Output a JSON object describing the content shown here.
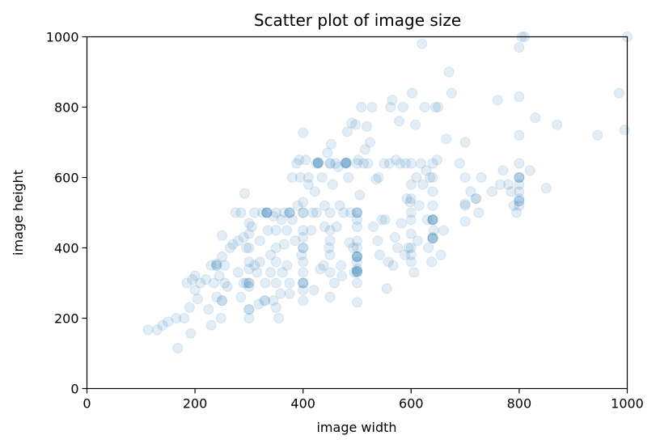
{
  "chart_data": {
    "type": "scatter",
    "title": "Scatter plot of image size",
    "xlabel": "image width",
    "ylabel": "image height",
    "xlim": [
      0,
      1000
    ],
    "ylim": [
      0,
      1000
    ],
    "xticks": [
      0,
      200,
      400,
      600,
      800,
      1000
    ],
    "yticks": [
      0,
      200,
      400,
      600,
      800,
      1000
    ],
    "grid": false,
    "point_color": "#1f77b4",
    "point_alpha": 0.13,
    "points": [
      [
        113,
        167
      ],
      [
        130,
        167
      ],
      [
        140,
        180
      ],
      [
        150,
        190
      ],
      [
        165,
        200
      ],
      [
        168,
        115
      ],
      [
        180,
        200
      ],
      [
        185,
        300
      ],
      [
        190,
        230
      ],
      [
        192,
        157
      ],
      [
        195,
        310
      ],
      [
        200,
        280
      ],
      [
        200,
        320
      ],
      [
        205,
        255
      ],
      [
        210,
        300
      ],
      [
        220,
        310
      ],
      [
        225,
        225
      ],
      [
        230,
        180
      ],
      [
        230,
        350
      ],
      [
        235,
        300
      ],
      [
        240,
        260
      ],
      [
        240,
        355
      ],
      [
        245,
        320
      ],
      [
        248,
        200
      ],
      [
        250,
        250
      ],
      [
        250,
        375
      ],
      [
        250,
        435
      ],
      [
        255,
        300
      ],
      [
        255,
        350
      ],
      [
        260,
        290
      ],
      [
        265,
        400
      ],
      [
        270,
        410
      ],
      [
        275,
        500
      ],
      [
        280,
        420
      ],
      [
        280,
        330
      ],
      [
        285,
        260
      ],
      [
        285,
        500
      ],
      [
        290,
        300
      ],
      [
        290,
        430
      ],
      [
        292,
        555
      ],
      [
        295,
        400
      ],
      [
        295,
        300
      ],
      [
        300,
        200
      ],
      [
        300,
        225
      ],
      [
        300,
        290
      ],
      [
        300,
        300
      ],
      [
        300,
        340
      ],
      [
        300,
        360
      ],
      [
        300,
        400
      ],
      [
        300,
        440
      ],
      [
        300,
        470
      ],
      [
        305,
        460
      ],
      [
        310,
        350
      ],
      [
        310,
        500
      ],
      [
        315,
        330
      ],
      [
        318,
        240
      ],
      [
        320,
        420
      ],
      [
        320,
        360
      ],
      [
        325,
        500
      ],
      [
        328,
        250
      ],
      [
        330,
        300
      ],
      [
        333,
        500
      ],
      [
        335,
        450
      ],
      [
        340,
        380
      ],
      [
        340,
        330
      ],
      [
        345,
        250
      ],
      [
        345,
        490
      ],
      [
        350,
        230
      ],
      [
        350,
        300
      ],
      [
        350,
        360
      ],
      [
        350,
        400
      ],
      [
        350,
        450
      ],
      [
        350,
        500
      ],
      [
        355,
        200
      ],
      [
        358,
        270
      ],
      [
        360,
        480
      ],
      [
        362,
        330
      ],
      [
        365,
        410
      ],
      [
        365,
        500
      ],
      [
        370,
        350
      ],
      [
        370,
        450
      ],
      [
        375,
        270
      ],
      [
        375,
        300
      ],
      [
        375,
        500
      ],
      [
        380,
        600
      ],
      [
        380,
        480
      ],
      [
        385,
        420
      ],
      [
        388,
        640
      ],
      [
        390,
        520
      ],
      [
        393,
        650
      ],
      [
        395,
        600
      ],
      [
        397,
        380
      ],
      [
        400,
        250
      ],
      [
        400,
        280
      ],
      [
        400,
        300
      ],
      [
        400,
        330
      ],
      [
        400,
        360
      ],
      [
        400,
        400
      ],
      [
        400,
        430
      ],
      [
        400,
        450
      ],
      [
        400,
        500
      ],
      [
        400,
        530
      ],
      [
        400,
        727
      ],
      [
        405,
        650
      ],
      [
        410,
        600
      ],
      [
        410,
        580
      ],
      [
        415,
        450
      ],
      [
        418,
        500
      ],
      [
        420,
        280
      ],
      [
        422,
        560
      ],
      [
        425,
        500
      ],
      [
        425,
        640
      ],
      [
        428,
        640
      ],
      [
        432,
        340
      ],
      [
        435,
        600
      ],
      [
        438,
        350
      ],
      [
        440,
        520
      ],
      [
        440,
        460
      ],
      [
        445,
        670
      ],
      [
        448,
        400
      ],
      [
        450,
        380
      ],
      [
        450,
        420
      ],
      [
        450,
        450
      ],
      [
        450,
        500
      ],
      [
        450,
        330
      ],
      [
        450,
        260
      ],
      [
        450,
        640
      ],
      [
        452,
        695
      ],
      [
        455,
        580
      ],
      [
        458,
        300
      ],
      [
        460,
        640
      ],
      [
        462,
        460
      ],
      [
        465,
        630
      ],
      [
        468,
        520
      ],
      [
        470,
        350
      ],
      [
        472,
        320
      ],
      [
        475,
        500
      ],
      [
        478,
        640
      ],
      [
        480,
        640
      ],
      [
        482,
        730
      ],
      [
        484,
        600
      ],
      [
        486,
        415
      ],
      [
        488,
        500
      ],
      [
        490,
        755
      ],
      [
        493,
        400
      ],
      [
        495,
        330
      ],
      [
        497,
        750
      ],
      [
        500,
        245
      ],
      [
        500,
        300
      ],
      [
        500,
        330
      ],
      [
        500,
        340
      ],
      [
        500,
        360
      ],
      [
        500,
        375
      ],
      [
        500,
        400
      ],
      [
        500,
        420
      ],
      [
        500,
        460
      ],
      [
        500,
        480
      ],
      [
        500,
        500
      ],
      [
        500,
        640
      ],
      [
        502,
        650
      ],
      [
        505,
        550
      ],
      [
        508,
        800
      ],
      [
        512,
        640
      ],
      [
        515,
        680
      ],
      [
        518,
        745
      ],
      [
        520,
        640
      ],
      [
        524,
        700
      ],
      [
        528,
        800
      ],
      [
        530,
        460
      ],
      [
        535,
        595
      ],
      [
        538,
        420
      ],
      [
        540,
        600
      ],
      [
        542,
        380
      ],
      [
        546,
        480
      ],
      [
        550,
        640
      ],
      [
        552,
        480
      ],
      [
        555,
        284
      ],
      [
        558,
        360
      ],
      [
        560,
        640
      ],
      [
        562,
        800
      ],
      [
        565,
        820
      ],
      [
        567,
        350
      ],
      [
        570,
        430
      ],
      [
        572,
        650
      ],
      [
        575,
        400
      ],
      [
        578,
        760
      ],
      [
        580,
        640
      ],
      [
        582,
        470
      ],
      [
        585,
        800
      ],
      [
        588,
        380
      ],
      [
        590,
        640
      ],
      [
        592,
        540
      ],
      [
        595,
        400
      ],
      [
        598,
        530
      ],
      [
        600,
        360
      ],
      [
        600,
        380
      ],
      [
        600,
        400
      ],
      [
        600,
        440
      ],
      [
        600,
        480
      ],
      [
        600,
        500
      ],
      [
        600,
        540
      ],
      [
        600,
        580
      ],
      [
        600,
        640
      ],
      [
        602,
        840
      ],
      [
        605,
        330
      ],
      [
        608,
        750
      ],
      [
        610,
        600
      ],
      [
        612,
        420
      ],
      [
        615,
        520
      ],
      [
        618,
        640
      ],
      [
        620,
        980
      ],
      [
        622,
        580
      ],
      [
        625,
        800
      ],
      [
        628,
        620
      ],
      [
        630,
        480
      ],
      [
        632,
        400
      ],
      [
        635,
        600
      ],
      [
        638,
        360
      ],
      [
        640,
        430
      ],
      [
        640,
        480
      ],
      [
        640,
        520
      ],
      [
        640,
        560
      ],
      [
        640,
        600
      ],
      [
        640,
        640
      ],
      [
        642,
        450
      ],
      [
        645,
        800
      ],
      [
        648,
        650
      ],
      [
        650,
        800
      ],
      [
        655,
        380
      ],
      [
        660,
        450
      ],
      [
        665,
        710
      ],
      [
        670,
        900
      ],
      [
        675,
        840
      ],
      [
        690,
        640
      ],
      [
        700,
        520
      ],
      [
        700,
        600
      ],
      [
        700,
        700
      ],
      [
        700,
        475
      ],
      [
        710,
        560
      ],
      [
        720,
        540
      ],
      [
        725,
        500
      ],
      [
        730,
        600
      ],
      [
        750,
        560
      ],
      [
        760,
        820
      ],
      [
        765,
        580
      ],
      [
        770,
        620
      ],
      [
        780,
        580
      ],
      [
        785,
        560
      ],
      [
        790,
        520
      ],
      [
        795,
        500
      ],
      [
        800,
        520
      ],
      [
        800,
        540
      ],
      [
        800,
        560
      ],
      [
        800,
        580
      ],
      [
        800,
        600
      ],
      [
        800,
        640
      ],
      [
        800,
        720
      ],
      [
        800,
        830
      ],
      [
        800,
        970
      ],
      [
        805,
        1000
      ],
      [
        810,
        1000
      ],
      [
        820,
        620
      ],
      [
        830,
        770
      ],
      [
        850,
        570
      ],
      [
        870,
        750
      ],
      [
        945,
        720
      ],
      [
        985,
        840
      ],
      [
        995,
        735
      ],
      [
        1000,
        1000
      ],
      [
        480,
        642
      ],
      [
        480,
        642
      ],
      [
        480,
        642
      ],
      [
        428,
        642
      ],
      [
        428,
        642
      ],
      [
        428,
        642
      ],
      [
        333,
        500
      ],
      [
        333,
        500
      ],
      [
        333,
        500
      ],
      [
        640,
        480
      ],
      [
        640,
        480
      ],
      [
        640,
        480
      ],
      [
        640,
        427
      ],
      [
        640,
        427
      ],
      [
        640,
        427
      ],
      [
        500,
        375
      ],
      [
        500,
        375
      ],
      [
        500,
        375
      ],
      [
        500,
        333
      ],
      [
        500,
        333
      ],
      [
        500,
        333
      ],
      [
        400,
        300
      ],
      [
        400,
        300
      ],
      [
        800,
        600
      ],
      [
        800,
        600
      ],
      [
        800,
        533
      ],
      [
        800,
        533
      ],
      [
        700,
        525
      ],
      [
        720,
        540
      ],
      [
        300,
        225
      ],
      [
        300,
        300
      ],
      [
        240,
        350
      ],
      [
        240,
        350
      ],
      [
        250,
        250
      ],
      [
        330,
        250
      ],
      [
        400,
        400
      ],
      [
        400,
        500
      ],
      [
        450,
        640
      ],
      [
        375,
        500
      ],
      [
        375,
        500
      ],
      [
        500,
        500
      ],
      [
        500,
        500
      ]
    ]
  }
}
